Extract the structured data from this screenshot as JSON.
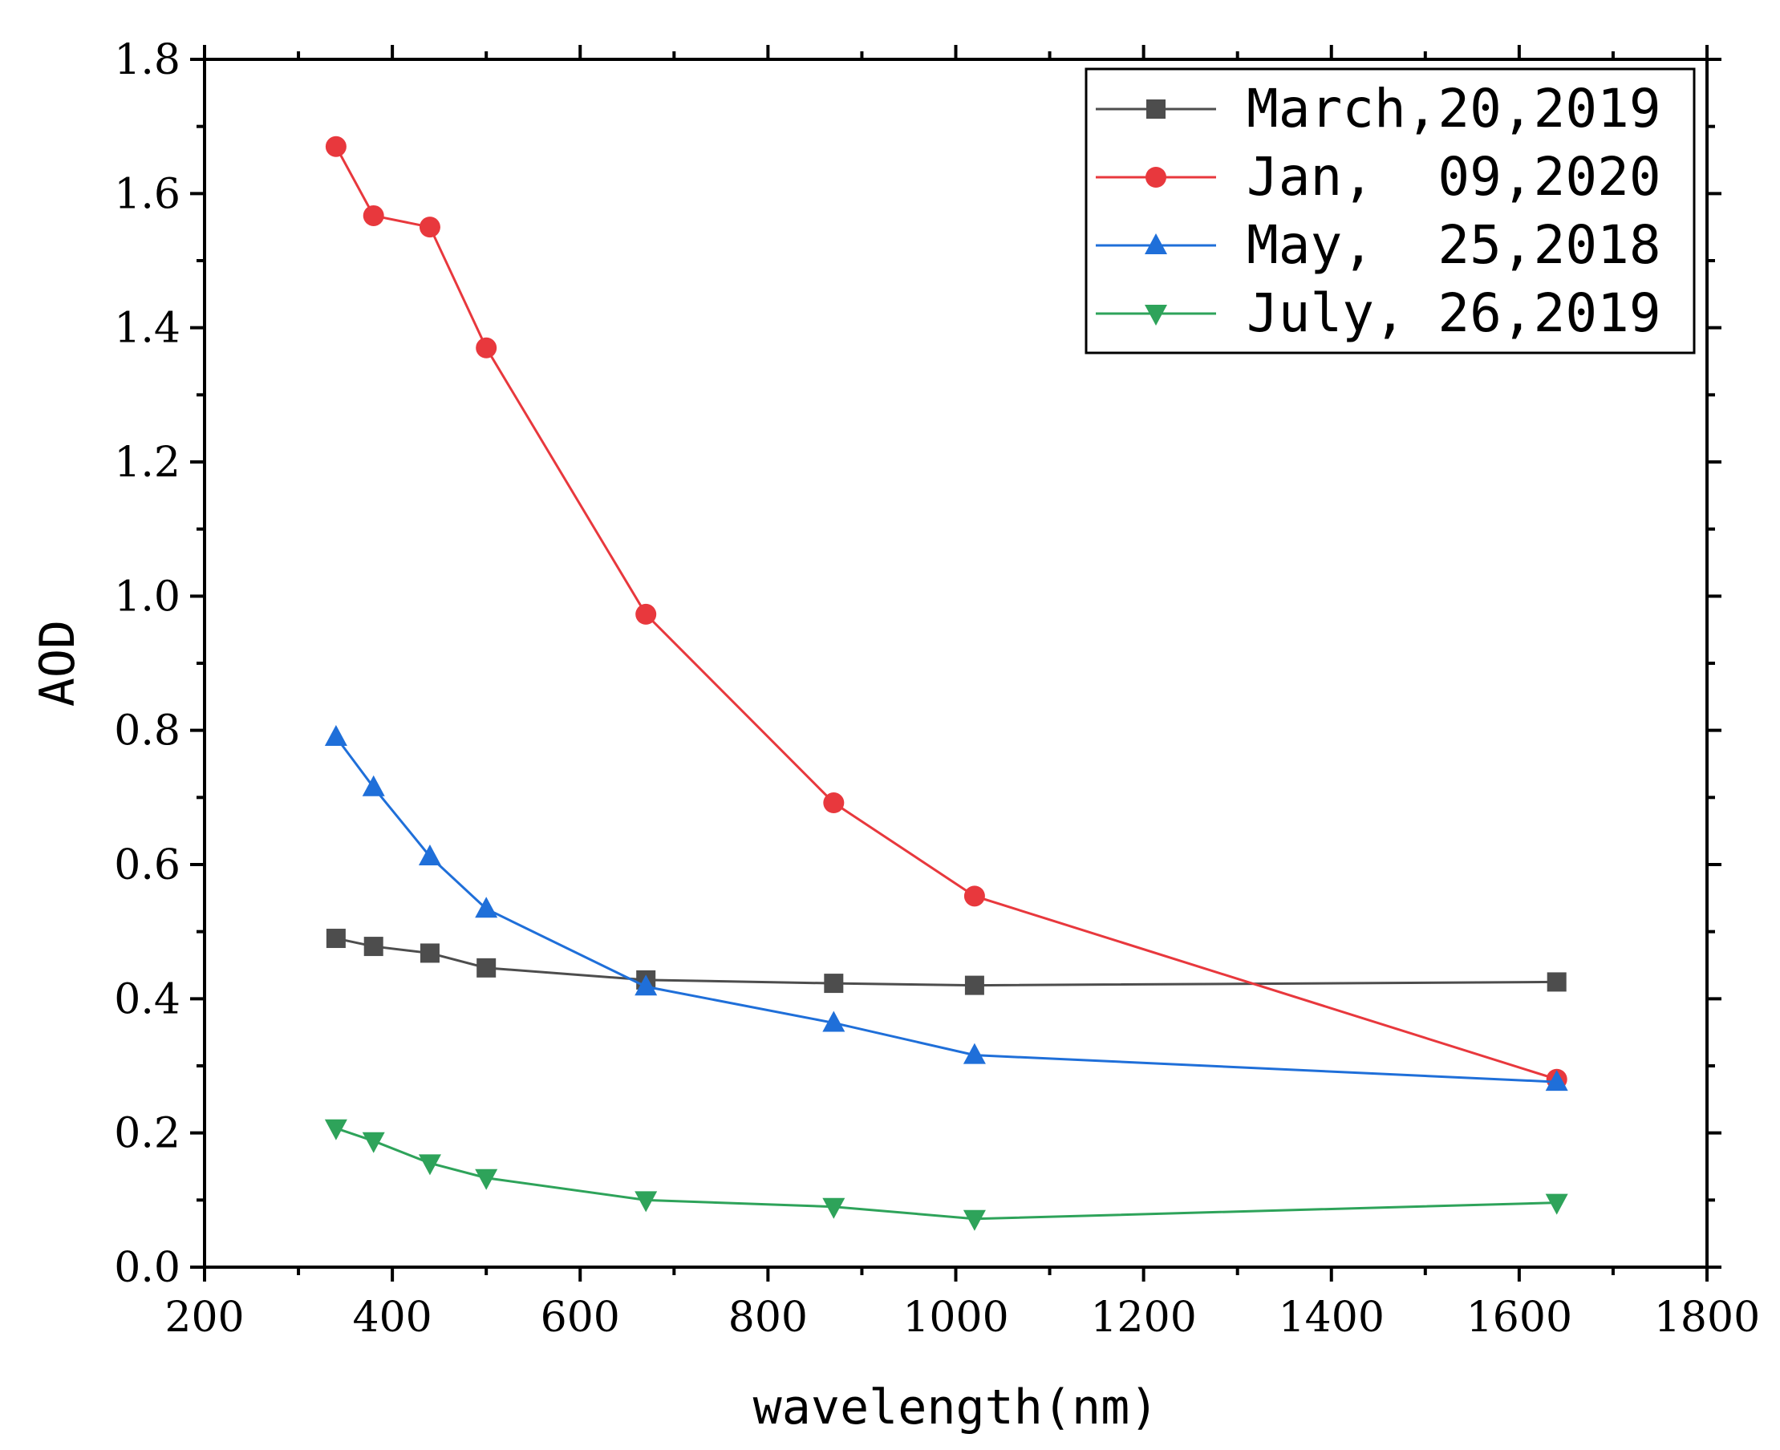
{
  "chart_data": {
    "type": "line",
    "title": "",
    "xlabel": "wavelength(nm)",
    "ylabel": "AOD",
    "xlim": [
      200,
      1800
    ],
    "ylim": [
      0.0,
      1.8
    ],
    "xticks": [
      200,
      400,
      600,
      800,
      1000,
      1200,
      1400,
      1600,
      1800
    ],
    "xtick_labels": [
      "200",
      "400",
      "600",
      "800",
      "1000",
      "1200",
      "1400",
      "1600",
      "1800"
    ],
    "yticks": [
      0.0,
      0.2,
      0.4,
      0.6,
      0.8,
      1.0,
      1.2,
      1.4,
      1.6,
      1.8
    ],
    "ytick_labels": [
      "0.0",
      "0.2",
      "0.4",
      "0.6",
      "0.8",
      "1.0",
      "1.2",
      "1.4",
      "1.6",
      "1.8"
    ],
    "grid": false,
    "legend_position": "top-right",
    "x": [
      340,
      380,
      440,
      500,
      670,
      870,
      1020,
      1640
    ],
    "series": [
      {
        "name": "March,20,2019",
        "color": "#4d4d4d",
        "marker": "square",
        "values": [
          0.49,
          0.478,
          0.468,
          0.446,
          0.428,
          0.423,
          0.42,
          0.425
        ]
      },
      {
        "name": "Jan,  09,2020",
        "color": "#e8383d",
        "marker": "circle",
        "values": [
          1.67,
          1.567,
          1.55,
          1.37,
          0.973,
          0.692,
          0.553,
          0.28
        ]
      },
      {
        "name": "May,  25,2018",
        "color": "#1f6fd9",
        "marker": "triangle-up",
        "values": [
          0.79,
          0.715,
          0.612,
          0.534,
          0.418,
          0.364,
          0.316,
          0.276
        ]
      },
      {
        "name": "July, 26,2019",
        "color": "#2ea35a",
        "marker": "triangle-down",
        "values": [
          0.207,
          0.188,
          0.155,
          0.133,
          0.1,
          0.09,
          0.072,
          0.096
        ]
      }
    ]
  }
}
